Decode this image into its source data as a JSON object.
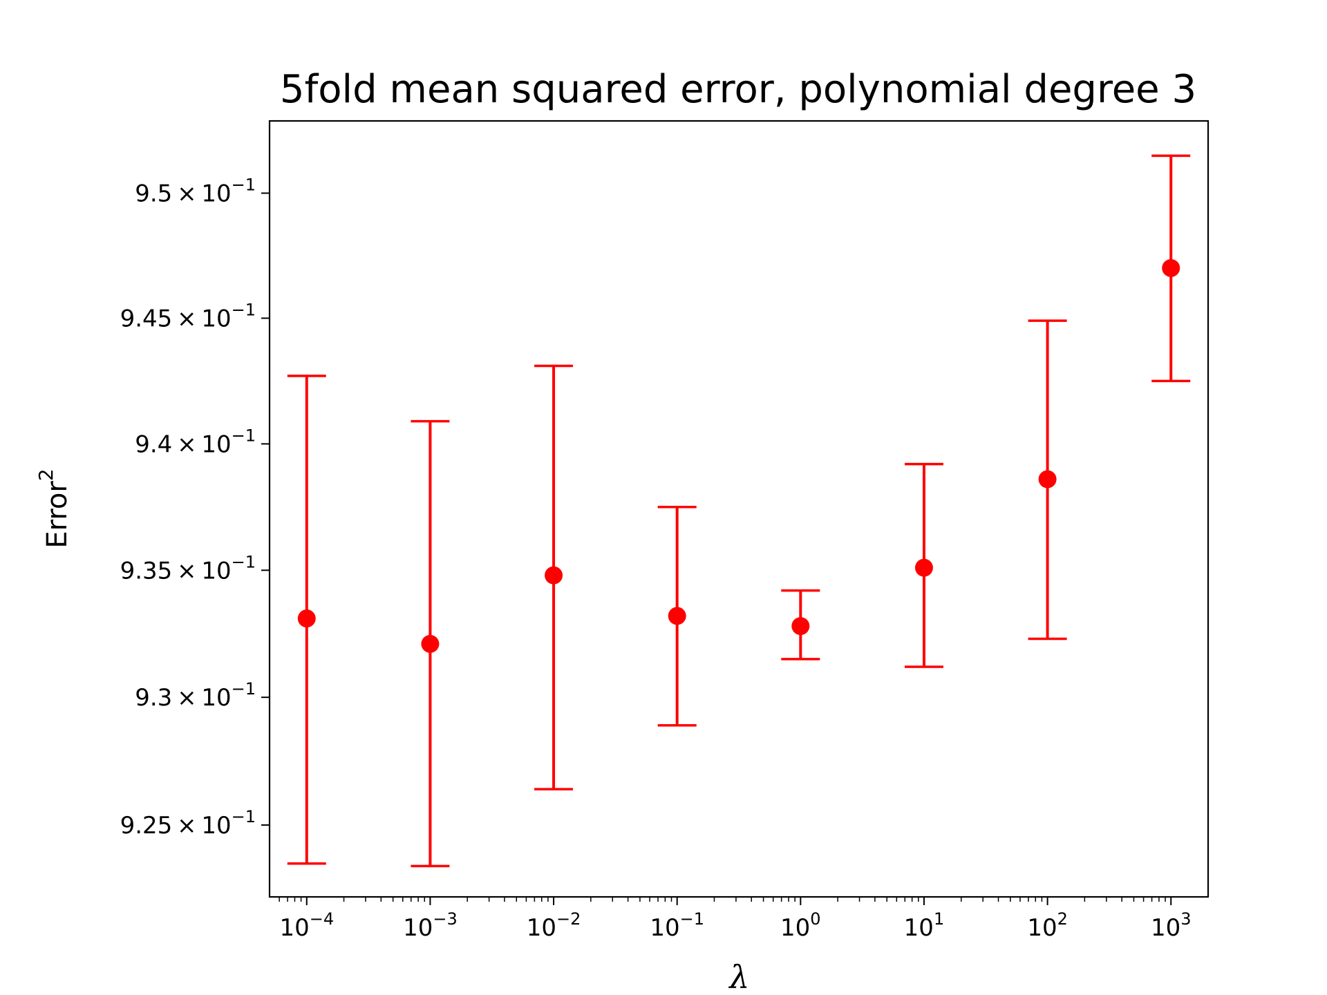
{
  "chart_data": {
    "type": "scatter",
    "title": "5fold mean squared error, polynomial degree 3",
    "xlabel": "λ",
    "ylabel": "Error",
    "ylabel_superscript": "2",
    "x_scale": "log",
    "y_scale": "log",
    "xlim": [
      5e-05,
      2000
    ],
    "ylim": [
      0.9222,
      0.9529
    ],
    "grid": false,
    "marker_color": "#ff0000",
    "x_ticks": [
      {
        "value": 0.0001,
        "base": "10",
        "exp": "−4"
      },
      {
        "value": 0.001,
        "base": "10",
        "exp": "−3"
      },
      {
        "value": 0.01,
        "base": "10",
        "exp": "−2"
      },
      {
        "value": 0.1,
        "base": "10",
        "exp": "−1"
      },
      {
        "value": 1,
        "base": "10",
        "exp": "0"
      },
      {
        "value": 10,
        "base": "10",
        "exp": "1"
      },
      {
        "value": 100,
        "base": "10",
        "exp": "2"
      },
      {
        "value": 1000,
        "base": "10",
        "exp": "3"
      }
    ],
    "y_ticks": [
      {
        "value": 0.925,
        "mantissa": "9.25",
        "base": "10",
        "exp": "−1"
      },
      {
        "value": 0.93,
        "mantissa": "9.3",
        "base": "10",
        "exp": "−1"
      },
      {
        "value": 0.935,
        "mantissa": "9.35",
        "base": "10",
        "exp": "−1"
      },
      {
        "value": 0.94,
        "mantissa": "9.4",
        "base": "10",
        "exp": "−1"
      },
      {
        "value": 0.945,
        "mantissa": "9.45",
        "base": "10",
        "exp": "−1"
      },
      {
        "value": 0.95,
        "mantissa": "9.5",
        "base": "10",
        "exp": "−1"
      }
    ],
    "points": [
      {
        "x": 0.0001,
        "y": 0.9331,
        "err_low": 0.9235,
        "err_high": 0.9427
      },
      {
        "x": 0.001,
        "y": 0.9321,
        "err_low": 0.9234,
        "err_high": 0.9409
      },
      {
        "x": 0.01,
        "y": 0.9348,
        "err_low": 0.9264,
        "err_high": 0.9431
      },
      {
        "x": 0.1,
        "y": 0.9332,
        "err_low": 0.9289,
        "err_high": 0.9375
      },
      {
        "x": 1,
        "y": 0.9328,
        "err_low": 0.9315,
        "err_high": 0.9342
      },
      {
        "x": 10,
        "y": 0.9351,
        "err_low": 0.9312,
        "err_high": 0.9392
      },
      {
        "x": 100,
        "y": 0.9386,
        "err_low": 0.9323,
        "err_high": 0.9449
      },
      {
        "x": 1000,
        "y": 0.947,
        "err_low": 0.9425,
        "err_high": 0.9515
      }
    ]
  }
}
